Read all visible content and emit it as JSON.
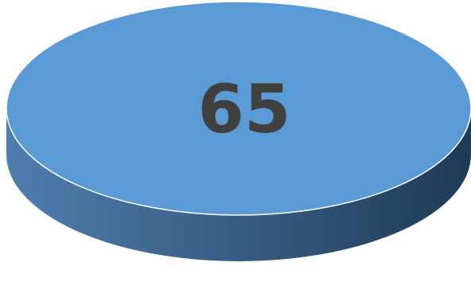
{
  "chart_data": {
    "type": "pie",
    "style": "3d",
    "slices": [
      {
        "value": 65,
        "label": "65"
      }
    ],
    "title": "",
    "legend": "none",
    "colors": {
      "top": "#5b9bd5",
      "side_light": "#4f7eae",
      "side_dark": "#1f3a55",
      "label": "#404040",
      "rim": "#ffffff"
    }
  }
}
